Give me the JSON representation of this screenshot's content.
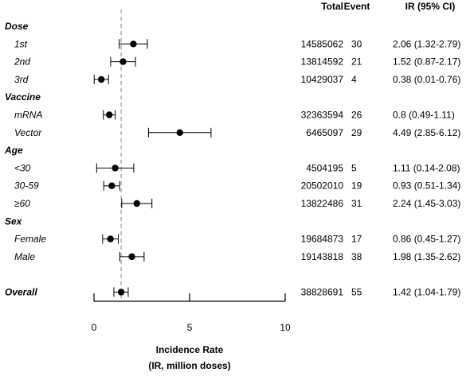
{
  "chart_data": {
    "type": "forest",
    "title": "",
    "xlabel_line1": "Incidence Rate",
    "xlabel_line2": "(IR, million doses)",
    "xlim": [
      0,
      10
    ],
    "xticks": [
      "0",
      "5",
      "10"
    ],
    "reference_line": 1.42,
    "columns": {
      "total": "Total",
      "event": "Event",
      "ir": "IR (95% CI)"
    },
    "rows": [
      {
        "kind": "header",
        "label": "Dose"
      },
      {
        "kind": "data",
        "label": "1st",
        "total": "14585062",
        "event": "30",
        "ir_text": "2.06 (1.32-2.79)",
        "ir": 2.06,
        "lo": 1.32,
        "hi": 2.79
      },
      {
        "kind": "data",
        "label": "2nd",
        "total": "13814592",
        "event": "21",
        "ir_text": "1.52 (0.87-2.17)",
        "ir": 1.52,
        "lo": 0.87,
        "hi": 2.17
      },
      {
        "kind": "data",
        "label": "3rd",
        "total": "10429037",
        "event": "4",
        "ir_text": "0.38 (0.01-0.76)",
        "ir": 0.38,
        "lo": 0.01,
        "hi": 0.76
      },
      {
        "kind": "header",
        "label": "Vaccine"
      },
      {
        "kind": "data",
        "label": "mRNA",
        "total": "32363594",
        "event": "26",
        "ir_text": "0.8 (0.49-1.11)",
        "ir": 0.8,
        "lo": 0.49,
        "hi": 1.11
      },
      {
        "kind": "data",
        "label": "Vector",
        "total": "6465097",
        "event": "29",
        "ir_text": "4.49 (2.85-6.12)",
        "ir": 4.49,
        "lo": 2.85,
        "hi": 6.12
      },
      {
        "kind": "header",
        "label": "Age"
      },
      {
        "kind": "data",
        "label": "<30",
        "total": "4504195",
        "event": "5",
        "ir_text": "1.11 (0.14-2.08)",
        "ir": 1.11,
        "lo": 0.14,
        "hi": 2.08
      },
      {
        "kind": "data",
        "label": "30-59",
        "total": "20502010",
        "event": "19",
        "ir_text": "0.93 (0.51-1.34)",
        "ir": 0.93,
        "lo": 0.51,
        "hi": 1.34
      },
      {
        "kind": "data",
        "label": "≥60",
        "total": "13822486",
        "event": "31",
        "ir_text": "2.24 (1.45-3.03)",
        "ir": 2.24,
        "lo": 1.45,
        "hi": 3.03
      },
      {
        "kind": "header",
        "label": "Sex"
      },
      {
        "kind": "data",
        "label": "Female",
        "total": "19684873",
        "event": "17",
        "ir_text": "0.86 (0.45-1.27)",
        "ir": 0.86,
        "lo": 0.45,
        "hi": 1.27
      },
      {
        "kind": "data",
        "label": "Male",
        "total": "19143818",
        "event": "38",
        "ir_text": "1.98 (1.35-2.62)",
        "ir": 1.98,
        "lo": 1.35,
        "hi": 2.62
      },
      {
        "kind": "spacer"
      },
      {
        "kind": "overall",
        "label": "Overall",
        "total": "38828691",
        "event": "55",
        "ir_text": "1.42 (1.04-1.79)",
        "ir": 1.42,
        "lo": 1.04,
        "hi": 1.79
      }
    ],
    "colors": {
      "marker": "#000000",
      "reference": "#9a9a9a",
      "text": "#000000"
    }
  }
}
